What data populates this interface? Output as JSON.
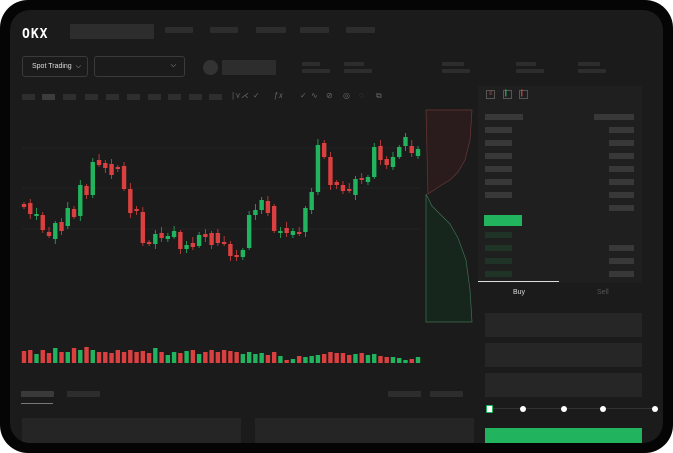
{
  "header": {
    "logo": "OKX"
  },
  "toolbar": {
    "market_select": "Spot Trading",
    "pair_select": "",
    "chevron": "chevron-down-icon"
  },
  "trade": {
    "tabs": [
      {
        "label": "Buy",
        "active": true
      },
      {
        "label": "Sell",
        "active": false
      }
    ],
    "slider_percent": 0
  },
  "colors": {
    "up": "#22b35e",
    "down": "#d9403f",
    "background": "#1b1b1b"
  },
  "chart_data": {
    "type": "candlestick",
    "candles": [
      [
        66,
        63
      ],
      [
        67,
        56
      ],
      [
        54,
        56
      ],
      [
        55,
        40
      ],
      [
        38,
        34
      ],
      [
        31,
        47
      ],
      [
        48,
        39
      ],
      [
        44,
        62
      ],
      [
        61,
        53
      ],
      [
        54,
        85
      ],
      [
        84,
        75
      ],
      [
        75,
        108
      ],
      [
        110,
        105
      ],
      [
        107,
        102
      ],
      [
        106,
        95
      ],
      [
        103,
        101
      ],
      [
        104,
        81
      ],
      [
        81,
        57
      ],
      [
        61,
        59
      ],
      [
        58,
        27
      ],
      [
        28,
        26
      ],
      [
        26,
        36
      ],
      [
        37,
        32
      ],
      [
        31,
        34
      ],
      [
        33,
        39
      ],
      [
        38,
        21
      ],
      [
        21,
        25
      ],
      [
        27,
        23
      ],
      [
        24,
        35
      ],
      [
        36,
        33
      ],
      [
        37,
        25
      ],
      [
        37,
        27
      ],
      [
        28,
        26
      ],
      [
        26,
        14
      ],
      [
        15,
        13
      ],
      [
        13,
        20
      ],
      [
        22,
        55
      ],
      [
        55,
        60
      ],
      [
        60,
        70
      ],
      [
        69,
        57
      ],
      [
        64,
        39
      ],
      [
        37,
        39
      ],
      [
        42,
        37
      ],
      [
        35,
        39
      ],
      [
        38,
        36
      ],
      [
        38,
        62
      ],
      [
        60,
        78
      ],
      [
        78,
        125
      ],
      [
        127,
        113
      ],
      [
        113,
        85
      ],
      [
        88,
        85
      ],
      [
        85,
        79
      ],
      [
        81,
        79
      ],
      [
        75,
        91
      ],
      [
        92,
        90
      ],
      [
        88,
        93
      ],
      [
        93,
        123
      ],
      [
        124,
        110
      ],
      [
        111,
        105
      ],
      [
        103,
        113
      ],
      [
        113,
        123
      ],
      [
        124,
        133
      ],
      [
        124,
        117
      ],
      [
        114,
        121
      ]
    ],
    "volumes": [
      12,
      13,
      9,
      13,
      10,
      15,
      11,
      11,
      15,
      13,
      16,
      13,
      11,
      11,
      10,
      13,
      11,
      13,
      11,
      12,
      10,
      15,
      11,
      8,
      11,
      10,
      12,
      13,
      9,
      11,
      13,
      11,
      13,
      12,
      11,
      9,
      11,
      9,
      10,
      8,
      11,
      7,
      3,
      4,
      7,
      6,
      7,
      8,
      9,
      11,
      10,
      10,
      8,
      9,
      10,
      8,
      9,
      7,
      6,
      6,
      5,
      3,
      4,
      6
    ],
    "ylim": [
      0,
      160
    ]
  }
}
